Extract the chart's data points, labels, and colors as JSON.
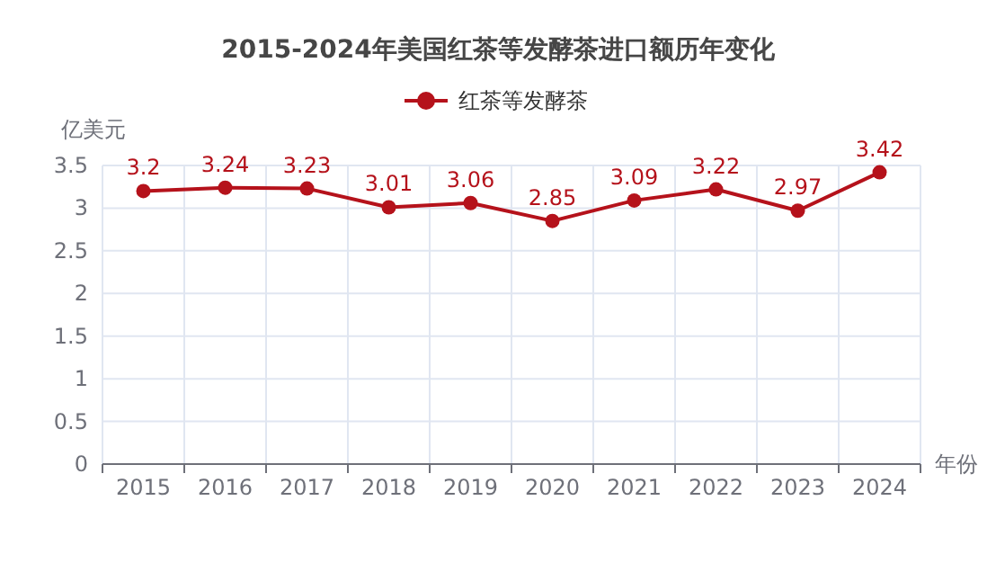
{
  "chart_data": {
    "type": "line",
    "title": "2015-2024年美国红茶等发酵茶进口额历年变化",
    "ylabel": "亿美元",
    "xlabel": "年份",
    "categories": [
      "2015",
      "2016",
      "2017",
      "2018",
      "2019",
      "2020",
      "2021",
      "2022",
      "2023",
      "2024"
    ],
    "series": [
      {
        "name": "红茶等发酵茶",
        "color": "#b5121b",
        "values": [
          3.2,
          3.24,
          3.23,
          3.01,
          3.06,
          2.85,
          3.09,
          3.22,
          2.97,
          3.42
        ]
      }
    ],
    "ylim": [
      0,
      3.5
    ],
    "yticks": [
      0,
      0.5,
      1,
      1.5,
      2,
      2.5,
      3,
      3.5
    ],
    "grid": true,
    "legend": "top",
    "marker": "circle",
    "data_labels": true
  }
}
